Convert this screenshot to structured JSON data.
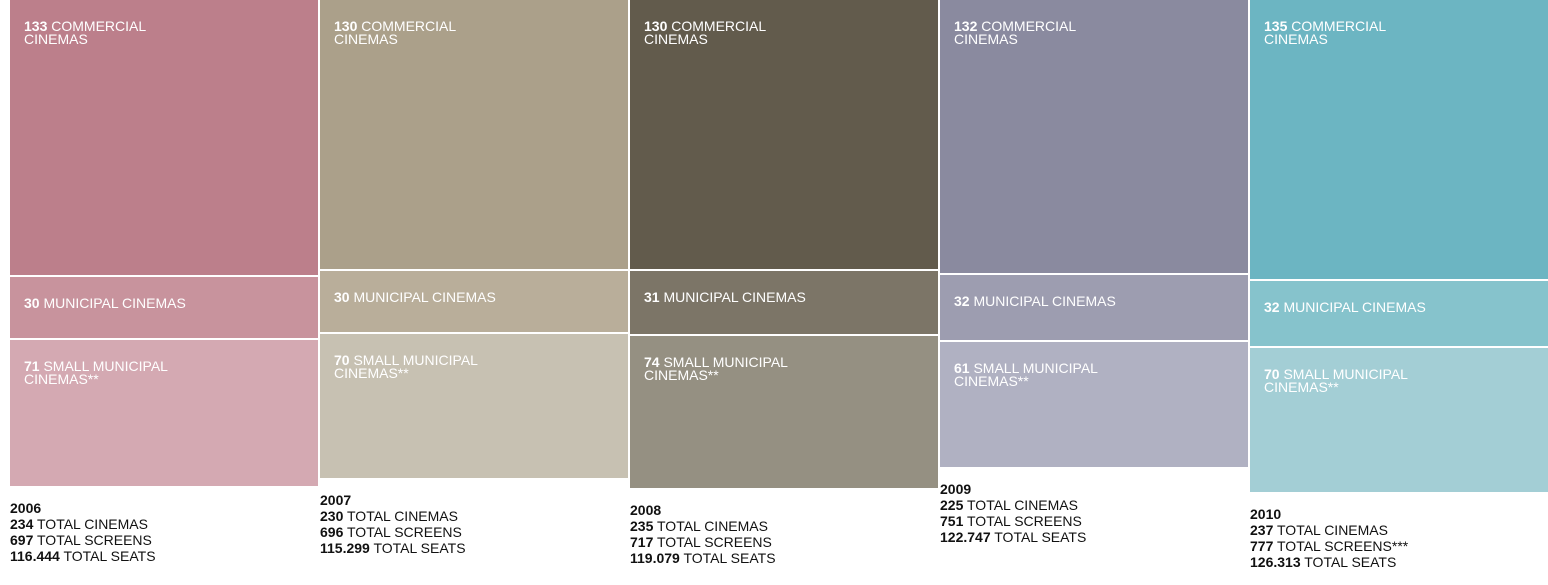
{
  "chart_data": {
    "type": "stacked-column",
    "categories": [
      "2006",
      "2007",
      "2008",
      "2009",
      "2010"
    ],
    "series": [
      {
        "name": "COMMERCIAL CINEMAS",
        "colors": [
          "#bc7f8b",
          "#aba08a",
          "#625b4c",
          "#8a8a9f",
          "#6cb5c2"
        ],
        "values": [
          133,
          130,
          130,
          132,
          135
        ]
      },
      {
        "name": "MUNICIPAL CINEMAS",
        "colors": [
          "#c8939d",
          "#b9ae9a",
          "#7c7567",
          "#9d9db0",
          "#86c3cc"
        ],
        "values": [
          30,
          30,
          31,
          32,
          32
        ]
      },
      {
        "name": "SMALL MUNICIPAL CINEMAS**",
        "colors": [
          "#d4a9b2",
          "#c7c1b2",
          "#959082",
          "#b0b1c2",
          "#a3ced5"
        ],
        "values": [
          71,
          70,
          74,
          61,
          70
        ]
      }
    ],
    "totals": [
      {
        "labels": [
          "TOTAL CINEMAS",
          "TOTAL CINEMAS",
          "TOTAL CINEMAS",
          "TOTAL CINEMAS",
          "TOTAL CINEMAS"
        ],
        "values": [
          234,
          230,
          235,
          225,
          237
        ]
      },
      {
        "labels": [
          "TOTAL SCREENS",
          "TOTAL SCREENS",
          "TOTAL SCREENS",
          "TOTAL SCREENS",
          "TOTAL SCREENS***"
        ],
        "values": [
          697,
          696,
          717,
          751,
          777
        ]
      },
      {
        "labels": [
          "TOTAL SEATS",
          "TOTAL SEATS",
          "TOTAL SEATS",
          "TOTAL SEATS",
          "TOTAL SEATS"
        ],
        "values": [
          116444,
          115299,
          119079,
          122747,
          126313
        ],
        "value_labels": [
          "116.444",
          "115.299",
          "119.079",
          "122.747",
          "126.313"
        ]
      }
    ]
  }
}
